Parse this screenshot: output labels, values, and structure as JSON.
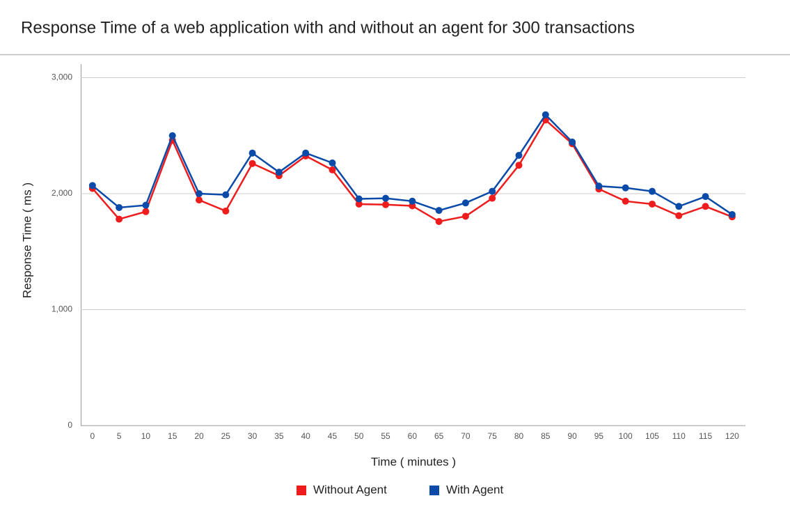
{
  "chart_data": {
    "type": "line",
    "title": "Response Time of a web application with and without an agent for 300 transactions",
    "xlabel": "Time ( minutes )",
    "ylabel": "Response Time ( ms )",
    "x": [
      0,
      5,
      10,
      15,
      20,
      25,
      30,
      35,
      40,
      45,
      50,
      55,
      60,
      65,
      70,
      75,
      80,
      85,
      90,
      95,
      100,
      105,
      110,
      115,
      120
    ],
    "xlim": [
      -2.2,
      122.5
    ],
    "xticks": [
      0,
      5,
      10,
      15,
      20,
      25,
      30,
      35,
      40,
      45,
      50,
      55,
      60,
      65,
      70,
      75,
      80,
      85,
      90,
      95,
      100,
      105,
      110,
      115,
      120
    ],
    "ylim": [
      0,
      3150
    ],
    "yticks": [
      0,
      {
        "value": 1000,
        "label": "1,000"
      },
      {
        "value": 2000,
        "label": "2,000"
      },
      {
        "value": 3000,
        "label": "3,000"
      }
    ],
    "grid": true,
    "legend": "bottom",
    "series": [
      {
        "name": "Without Agent",
        "color": "#ee1c1c",
        "values": [
          2045,
          1780,
          1845,
          2460,
          1945,
          1850,
          2260,
          2155,
          2325,
          2205,
          1910,
          1905,
          1895,
          1760,
          1805,
          1960,
          2245,
          2635,
          2430,
          2040,
          1935,
          1910,
          1810,
          1890,
          1800
        ]
      },
      {
        "name": "With Agent",
        "color": "#0a4aa8",
        "values": [
          2070,
          1880,
          1900,
          2500,
          2000,
          1990,
          2350,
          2185,
          2350,
          2265,
          1955,
          1960,
          1935,
          1855,
          1920,
          2020,
          2330,
          2680,
          2445,
          2065,
          2050,
          2020,
          1890,
          1975,
          1820
        ]
      }
    ]
  }
}
